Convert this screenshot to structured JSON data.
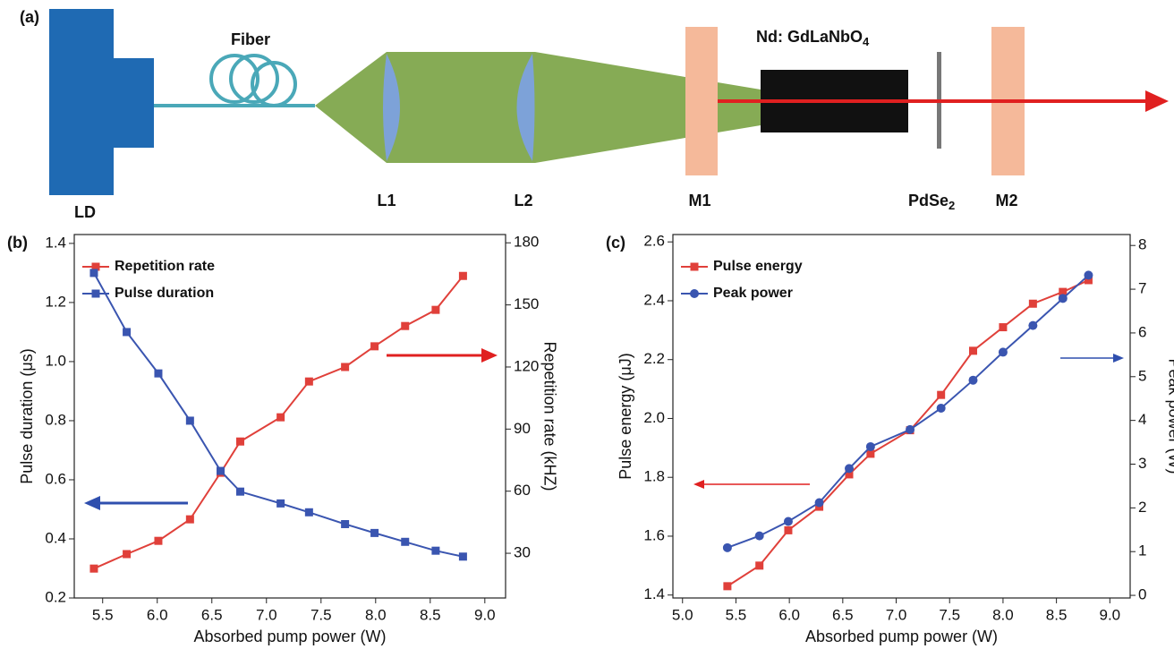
{
  "diagram": {
    "panel_label": "(a)",
    "ld": "LD",
    "fiber": "Fiber",
    "l1": "L1",
    "l2": "L2",
    "m1": "M1",
    "crystal": {
      "text": "Nd: GdLaNbO",
      "sub": "4"
    },
    "absorber": {
      "text": "PdSe",
      "sub": "2"
    },
    "m2": "M2"
  },
  "chart_data": [
    {
      "type": "line",
      "panel_label": "(b)",
      "x_label": "Absorbed pump power (W)",
      "y_label": "Pulse duration (μs)",
      "y2_label": "Repetition rate (kHZ)",
      "xlim": [
        5.24,
        9.19
      ],
      "xticks": [
        5.5,
        {
          "value": 6,
          "label": "6.0"
        },
        6.5,
        {
          "value": 7,
          "label": "7.0"
        },
        7.5,
        {
          "value": 8,
          "label": "8.0"
        },
        8.5,
        {
          "value": 9,
          "label": "9.0"
        }
      ],
      "ylim": [
        0.2,
        1.43
      ],
      "yticks": [
        0.2,
        0.4,
        0.6,
        0.8,
        {
          "value": 1,
          "label": "1.0"
        },
        1.2,
        1.4
      ],
      "y2lim": [
        8.4,
        184
      ],
      "y2ticks": [
        30,
        60,
        90,
        120,
        150,
        180
      ],
      "legend": "upper left",
      "series": [
        {
          "name": "Repetition rate",
          "color": "#e0403a",
          "marker": "square",
          "axis": "y2",
          "x": [
            5.42,
            5.72,
            6.01,
            6.3,
            6.58,
            6.76,
            7.13,
            7.39,
            7.72,
            7.99,
            8.27,
            8.55,
            8.8
          ],
          "values": [
            22.6,
            29.6,
            36,
            46.4,
            68.9,
            84,
            95.7,
            113,
            120,
            130,
            139.8,
            147.6,
            164
          ]
        },
        {
          "name": "Pulse duration",
          "color": "#3a55b0",
          "marker": "square",
          "x": [
            5.42,
            5.72,
            6.01,
            6.3,
            6.58,
            6.76,
            7.13,
            7.39,
            7.72,
            7.99,
            8.27,
            8.55,
            8.8
          ],
          "values": [
            1.3,
            1.1,
            0.96,
            0.8,
            0.63,
            0.56,
            0.52,
            0.49,
            0.45,
            0.42,
            0.39,
            0.36,
            0.34
          ]
        }
      ]
    },
    {
      "type": "line",
      "panel_label": "(c)",
      "x_label": "Absorbed pump power (W)",
      "y_label": "Pulse energy (μJ)",
      "y2_label": "Peak power (W)",
      "xlim": [
        4.91,
        9.19
      ],
      "xticks": [
        {
          "value": 5,
          "label": "5.0"
        },
        5.5,
        {
          "value": 6,
          "label": "6.0"
        },
        6.5,
        {
          "value": 7,
          "label": "7.0"
        },
        7.5,
        {
          "value": 8,
          "label": "8.0"
        },
        8.5,
        {
          "value": 9,
          "label": "9.0"
        }
      ],
      "ylim": [
        1.39,
        2.625
      ],
      "yticks": [
        1.4,
        1.6,
        1.8,
        {
          "value": 2,
          "label": "2.0"
        },
        2.2,
        2.4,
        2.6
      ],
      "y2lim": [
        -0.06,
        8.25
      ],
      "y2ticks": [
        0,
        1,
        2,
        3,
        4,
        5,
        6,
        7,
        8
      ],
      "legend": "upper left",
      "series": [
        {
          "name": "Pulse energy",
          "color": "#e0403a",
          "marker": "square",
          "x": [
            5.42,
            5.72,
            5.99,
            6.28,
            6.56,
            6.76,
            7.13,
            7.42,
            7.72,
            8.0,
            8.28,
            8.56,
            8.8
          ],
          "values": [
            1.43,
            1.5,
            1.62,
            1.7,
            1.81,
            1.88,
            1.96,
            2.08,
            2.23,
            2.31,
            2.39,
            2.43,
            2.47
          ]
        },
        {
          "name": "Peak power",
          "color": "#3a55b0",
          "marker": "circle",
          "axis": "y2",
          "x": [
            5.42,
            5.72,
            5.99,
            6.28,
            6.56,
            6.76,
            7.13,
            7.42,
            7.72,
            8.0,
            8.28,
            8.56,
            8.8
          ],
          "values": [
            1.09,
            1.36,
            1.69,
            2.12,
            2.9,
            3.4,
            3.79,
            4.28,
            4.92,
            5.56,
            6.17,
            6.79,
            7.32
          ]
        }
      ]
    }
  ]
}
